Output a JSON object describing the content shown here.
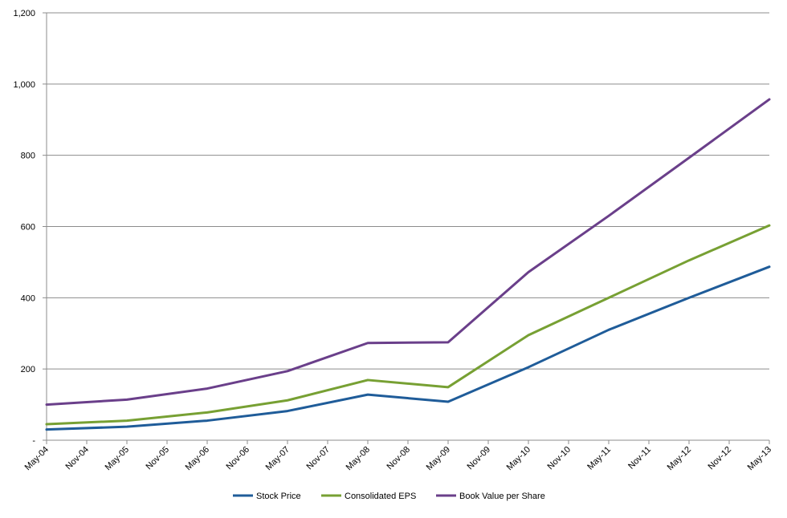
{
  "chart_data": {
    "type": "line",
    "title": "",
    "xlabel": "",
    "ylabel": "",
    "ylim": [
      0,
      1200
    ],
    "y_ticks": [
      0,
      200,
      400,
      600,
      800,
      1000,
      1200
    ],
    "y_tick_labels": [
      "-",
      "200",
      "400",
      "600",
      "800",
      "1,000",
      "1,200"
    ],
    "x_tick_labels": [
      "May-04",
      "Nov-04",
      "May-05",
      "Nov-05",
      "May-06",
      "Nov-06",
      "May-07",
      "Nov-07",
      "May-08",
      "Nov-08",
      "May-09",
      "Nov-09",
      "May-10",
      "Nov-10",
      "May-11",
      "Nov-11",
      "May-12",
      "Nov-12",
      "May-13"
    ],
    "x": [
      "May-04",
      "May-05",
      "May-06",
      "May-07",
      "May-08",
      "May-09",
      "May-10",
      "May-11",
      "May-12",
      "May-13"
    ],
    "grid": true,
    "legend_position": "bottom",
    "series": [
      {
        "name": "Stock Price",
        "color": "#1F5C99",
        "values": [
          30,
          38,
          55,
          82,
          128,
          108,
          205,
          310,
          400,
          487
        ]
      },
      {
        "name": "Consolidated EPS",
        "color": "#77A033",
        "values": [
          45,
          55,
          78,
          112,
          169,
          149,
          295,
          400,
          505,
          603
        ]
      },
      {
        "name": "Book Value per Share",
        "color": "#6A3F8A",
        "values": [
          100,
          114,
          145,
          194,
          273,
          275,
          472,
          630,
          793,
          957
        ]
      }
    ]
  }
}
